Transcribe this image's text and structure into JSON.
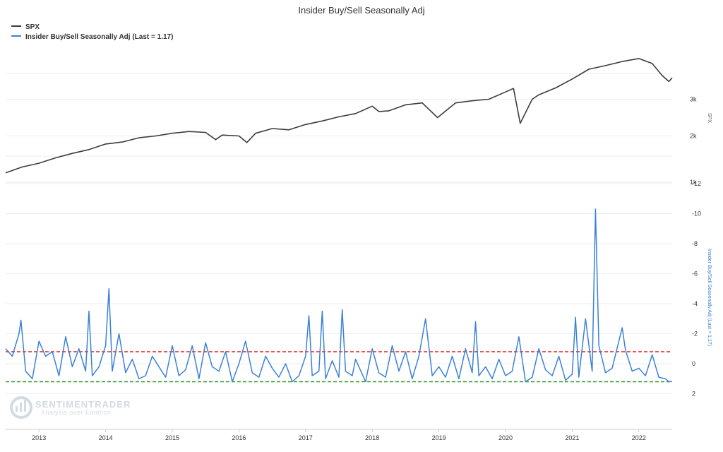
{
  "chart_data": {
    "type": "line",
    "title": "Insider Buy/Sell Seasonally Adj",
    "legend": [
      {
        "label": "SPX",
        "color": "#3c3c3c"
      },
      {
        "label": "Insider Buy/Sell Seasonally Adj (Last = 1.17)",
        "color": "#3b82d6"
      }
    ],
    "x_axis": {
      "ticks": [
        "2013",
        "2014",
        "2015",
        "2016",
        "2017",
        "2018",
        "2019",
        "2020",
        "2021",
        "2022"
      ],
      "range": [
        2012.5,
        2022.5
      ]
    },
    "panels": [
      {
        "name": "SPX",
        "ylabel": "SPX",
        "scale": "log",
        "ylim": [
          1200,
          5000
        ],
        "ticks": [
          {
            "value": 2000,
            "label": "2k"
          },
          {
            "value": 3000,
            "label": "3k"
          },
          {
            "value": 1000,
            "label": "1k"
          }
        ],
        "series": {
          "name": "SPX",
          "color": "#3c3c3c",
          "x": [
            2012.5,
            2012.75,
            2013.0,
            2013.25,
            2013.5,
            2013.75,
            2014.0,
            2014.25,
            2014.5,
            2014.75,
            2015.0,
            2015.25,
            2015.5,
            2015.65,
            2015.75,
            2016.0,
            2016.12,
            2016.25,
            2016.5,
            2016.75,
            2017.0,
            2017.25,
            2017.5,
            2017.75,
            2018.0,
            2018.1,
            2018.25,
            2018.5,
            2018.75,
            2018.98,
            2019.25,
            2019.5,
            2019.75,
            2020.0,
            2020.12,
            2020.22,
            2020.4,
            2020.5,
            2020.75,
            2021.0,
            2021.25,
            2021.5,
            2021.75,
            2022.0,
            2022.2,
            2022.35,
            2022.45,
            2022.5
          ],
          "values": [
            1330,
            1420,
            1480,
            1570,
            1650,
            1720,
            1830,
            1870,
            1960,
            2000,
            2060,
            2100,
            2080,
            1920,
            2020,
            2000,
            1860,
            2060,
            2170,
            2140,
            2270,
            2360,
            2470,
            2560,
            2780,
            2620,
            2640,
            2820,
            2880,
            2450,
            2880,
            2950,
            3000,
            3250,
            3380,
            2300,
            3000,
            3150,
            3400,
            3750,
            4180,
            4350,
            4550,
            4700,
            4450,
            3900,
            3650,
            3800
          ]
        }
      },
      {
        "name": "Insider Buy/Sell Seasonally Adj",
        "ylabel": "Insider Buy/Sell Seasonally Adj (Last = 1.17)",
        "reversed": true,
        "ylim": [
          -12,
          4
        ],
        "ticks": [
          2,
          0,
          -2,
          -4,
          -6,
          -8,
          -10,
          -12
        ],
        "reference_lines": [
          {
            "value": -0.8,
            "color": "#e02020",
            "style": "dashed"
          },
          {
            "value": 1.2,
            "color": "#2a9a2a",
            "style": "dashed"
          }
        ],
        "series": {
          "name": "Insider Buy/Sell Seasonally Adj",
          "color": "#3b82d6",
          "x": [
            2012.5,
            2012.6,
            2012.7,
            2012.73,
            2012.8,
            2012.9,
            2013.0,
            2013.1,
            2013.2,
            2013.3,
            2013.4,
            2013.5,
            2013.6,
            2013.7,
            2013.75,
            2013.8,
            2013.9,
            2014.0,
            2014.05,
            2014.1,
            2014.2,
            2014.3,
            2014.4,
            2014.5,
            2014.6,
            2014.7,
            2014.8,
            2014.9,
            2015.0,
            2015.1,
            2015.2,
            2015.3,
            2015.4,
            2015.5,
            2015.6,
            2015.7,
            2015.8,
            2015.9,
            2016.0,
            2016.1,
            2016.2,
            2016.3,
            2016.4,
            2016.5,
            2016.6,
            2016.7,
            2016.8,
            2016.9,
            2017.0,
            2017.05,
            2017.1,
            2017.2,
            2017.25,
            2017.3,
            2017.4,
            2017.5,
            2017.55,
            2017.6,
            2017.7,
            2017.75,
            2017.8,
            2017.9,
            2018.0,
            2018.1,
            2018.2,
            2018.3,
            2018.4,
            2018.5,
            2018.6,
            2018.7,
            2018.8,
            2018.9,
            2019.0,
            2019.1,
            2019.2,
            2019.3,
            2019.4,
            2019.5,
            2019.55,
            2019.6,
            2019.7,
            2019.8,
            2019.9,
            2020.0,
            2020.1,
            2020.2,
            2020.3,
            2020.4,
            2020.5,
            2020.6,
            2020.7,
            2020.8,
            2020.9,
            2021.0,
            2021.05,
            2021.1,
            2021.2,
            2021.3,
            2021.35,
            2021.4,
            2021.5,
            2021.6,
            2021.7,
            2021.75,
            2021.8,
            2021.9,
            2022.0,
            2022.1,
            2022.2,
            2022.3,
            2022.4,
            2022.45,
            2022.5
          ],
          "values": [
            -1.0,
            -0.5,
            -2.0,
            -2.9,
            0.5,
            1.0,
            -1.5,
            -0.5,
            -0.8,
            0.8,
            -1.8,
            0.2,
            -1.0,
            0.5,
            -3.5,
            0.8,
            0.2,
            -1.2,
            -5.0,
            0.5,
            -2.0,
            0.6,
            -0.3,
            1.0,
            0.8,
            -0.5,
            0.2,
            0.9,
            -1.2,
            0.8,
            0.4,
            -1.2,
            1.0,
            -1.4,
            0.2,
            0.5,
            -0.8,
            1.2,
            0.0,
            -1.5,
            0.6,
            0.9,
            -0.5,
            0.3,
            0.9,
            0.0,
            1.2,
            0.8,
            -0.5,
            -3.2,
            0.8,
            0.5,
            -3.5,
            1.0,
            -0.2,
            0.9,
            -3.6,
            0.5,
            0.8,
            -0.3,
            0.2,
            1.2,
            -1.0,
            0.6,
            0.9,
            -1.2,
            0.5,
            -0.8,
            1.0,
            -0.5,
            -3.0,
            0.8,
            0.2,
            0.9,
            -0.5,
            1.0,
            -1.0,
            0.6,
            -2.8,
            0.8,
            0.2,
            1.0,
            -0.3,
            0.8,
            0.5,
            -1.8,
            1.2,
            0.9,
            -1.0,
            0.4,
            0.8,
            -0.5,
            1.1,
            0.7,
            -3.1,
            0.9,
            -3.0,
            0.5,
            -10.3,
            -1.2,
            0.6,
            0.3,
            -1.5,
            -2.4,
            -0.9,
            0.5,
            0.3,
            0.8,
            -0.6,
            0.9,
            1.0,
            1.2,
            1.17
          ]
        }
      }
    ],
    "watermark": {
      "name": "SENTIMENTRADER",
      "tagline": "Analysis over Emotion"
    }
  }
}
